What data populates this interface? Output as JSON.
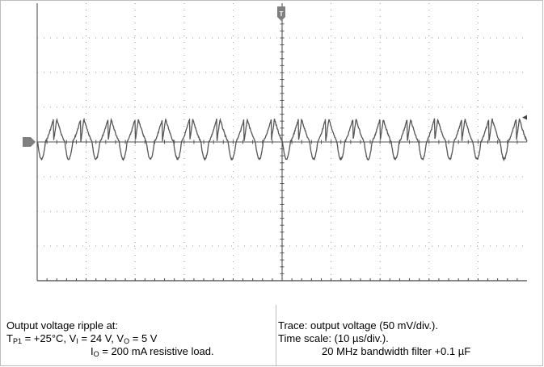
{
  "chart_data": {
    "type": "line",
    "title": "",
    "xlabel": "",
    "ylabel": "",
    "x_divisions": 10,
    "y_divisions": 8,
    "grid": true,
    "trace": {
      "name": "output voltage",
      "color": "#555555",
      "peak_count": 18,
      "baseline_div": 4.0,
      "peak_div": 4.66,
      "trough_div": 3.5
    },
    "channel_marker_color": "#7f7f7f",
    "trigger_marker_label": "T"
  },
  "caption_left": {
    "line1": "Output voltage ripple at:",
    "line2": {
      "t_main": "T",
      "t_sub": "P1",
      "t_val": " = +25°C, V",
      "vi_sub": "I",
      "vi_val": " = 24 V, V",
      "vo_sub": "O",
      "vo_val": " = 5 V"
    },
    "line3": {
      "i_main": "I",
      "i_sub": "O",
      "i_val": " = 200 mA resistive load."
    }
  },
  "caption_right": {
    "line1": "Trace: output voltage (50 mV/div.).",
    "line2": "Time scale: (10 µs/div.).",
    "line3": "20 MHz bandwidth filter +0.1 µF"
  }
}
